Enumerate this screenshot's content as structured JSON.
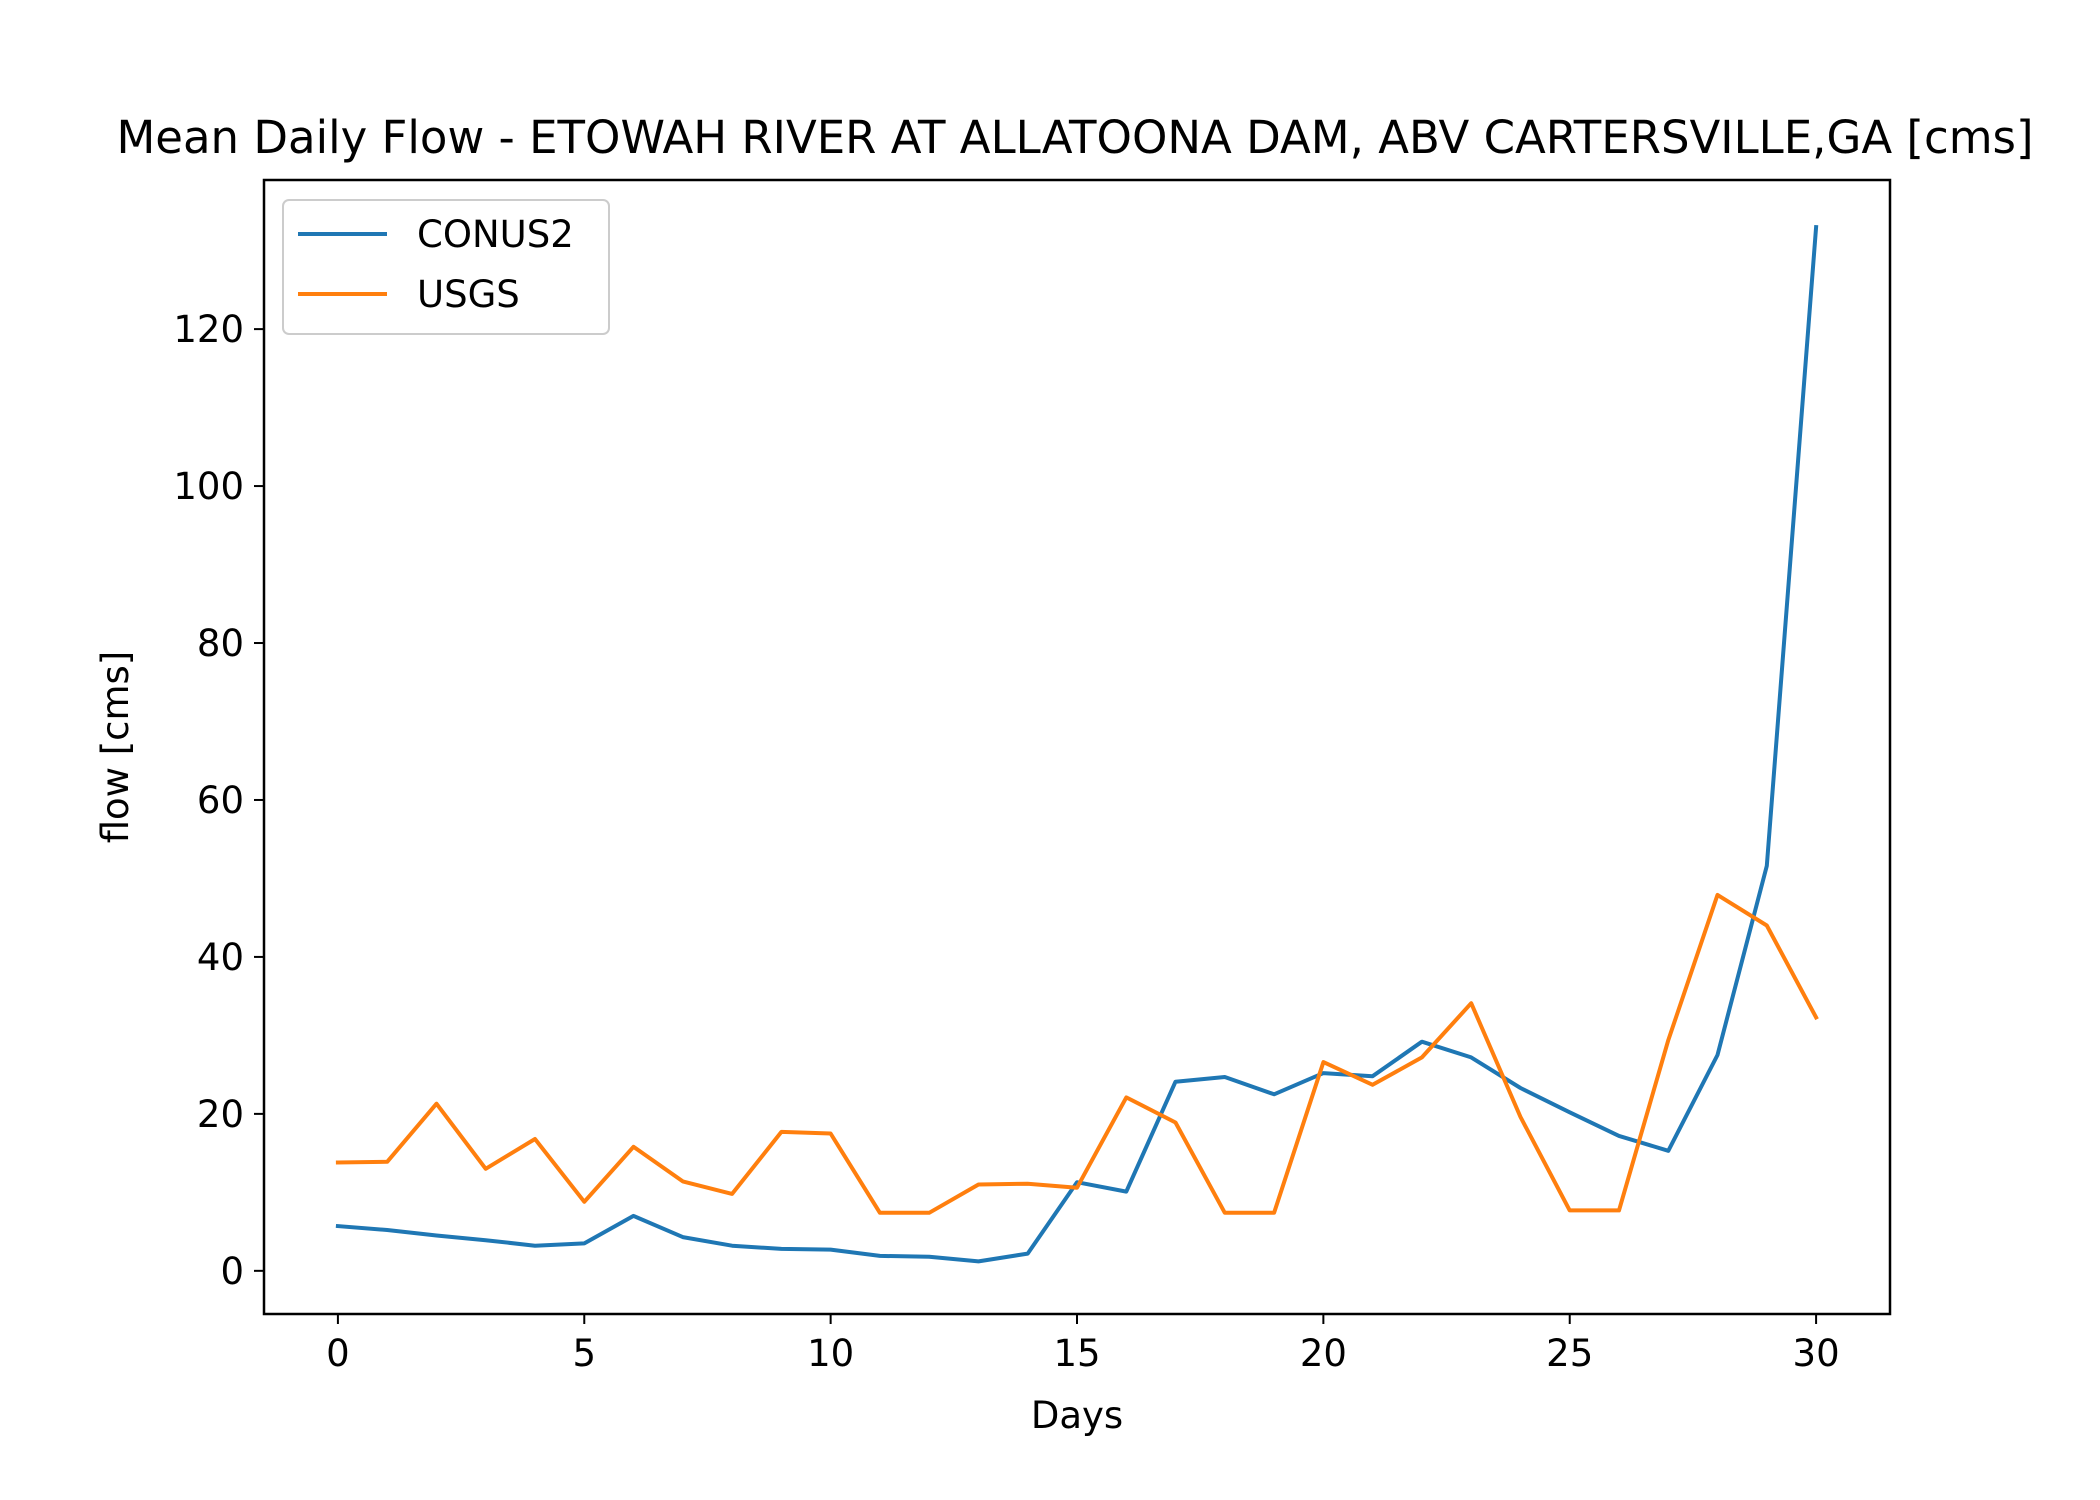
{
  "chart_data": {
    "type": "line",
    "title": "Mean Daily Flow - ETOWAH RIVER AT ALLATOONA DAM, ABV CARTERSVILLE,GA [cms]",
    "xlabel": "Days",
    "ylabel": "flow [cms]",
    "xlim": [
      -1.5,
      31.5
    ],
    "ylim": [
      -5.5,
      139
    ],
    "xticks": [
      0,
      5,
      10,
      15,
      20,
      25,
      30
    ],
    "yticks": [
      0,
      20,
      40,
      60,
      80,
      100,
      120
    ],
    "grid": false,
    "legend_position": "upper-left",
    "x": [
      0,
      1,
      2,
      3,
      4,
      5,
      6,
      7,
      8,
      9,
      10,
      11,
      12,
      13,
      14,
      15,
      16,
      17,
      18,
      19,
      20,
      21,
      22,
      23,
      24,
      25,
      26,
      27,
      28,
      29,
      30
    ],
    "series": [
      {
        "name": "CONUS2",
        "color": "#1f77b4",
        "values": [
          5.7,
          5.2,
          4.5,
          3.9,
          3.2,
          3.5,
          7.0,
          4.3,
          3.2,
          2.8,
          2.7,
          1.9,
          1.8,
          1.2,
          2.2,
          11.3,
          10.1,
          24.1,
          24.7,
          22.5,
          25.2,
          24.8,
          29.2,
          27.2,
          23.3,
          20.2,
          17.2,
          15.3,
          27.5,
          51.6,
          133.0
        ]
      },
      {
        "name": "USGS",
        "color": "#ff7f0e",
        "values": [
          13.8,
          13.9,
          21.3,
          13.0,
          16.8,
          8.8,
          15.8,
          11.4,
          9.8,
          17.7,
          17.5,
          7.4,
          7.4,
          11.0,
          11.1,
          10.6,
          22.1,
          18.9,
          7.4,
          7.4,
          26.6,
          23.7,
          27.2,
          34.1,
          19.6,
          7.7,
          7.7,
          29.4,
          47.9,
          44.0,
          32.3
        ]
      }
    ]
  }
}
